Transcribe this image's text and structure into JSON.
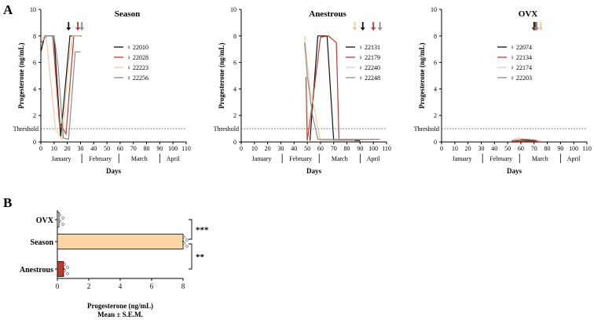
{
  "panel_labels": {
    "a": "A",
    "b": "B"
  },
  "threshold_label": "Threshold",
  "colors": {
    "black": "#111111",
    "red": "#c0392b",
    "peach": "#f3c89a",
    "gray": "#8c8c8c",
    "bar_fill": "#fcd5a5",
    "bar_red": "#c0392b"
  },
  "chart_data": [
    {
      "type": "line",
      "title": "Season",
      "xlabel": "Days",
      "ylabel": "Progesterone (ng/mL)",
      "xlim": [
        0,
        110
      ],
      "ylim": [
        0,
        10
      ],
      "x_ticks": [
        0,
        10,
        20,
        30,
        40,
        50,
        60,
        70,
        80,
        90,
        100,
        110
      ],
      "y_ticks": [
        0,
        2,
        4,
        6,
        8,
        10
      ],
      "months": [
        "January",
        "February",
        "March",
        "April"
      ],
      "threshold": 1,
      "series": [
        {
          "name": "♀ 22010",
          "color": "black",
          "points": [
            [
              0,
              6.8
            ],
            [
              3,
              8
            ],
            [
              10,
              8
            ],
            [
              15,
              0.4
            ],
            [
              22,
              8
            ],
            [
              29,
              8
            ]
          ]
        },
        {
          "name": "♀ 22028",
          "color": "red",
          "points": [
            [
              0,
              7.4
            ],
            [
              4,
              8
            ],
            [
              9,
              8
            ],
            [
              14,
              1.5
            ],
            [
              19,
              0.6
            ],
            [
              25,
              8
            ],
            [
              31,
              8
            ]
          ]
        },
        {
          "name": "♀ 22223",
          "color": "peach",
          "points": [
            [
              0,
              7.8
            ],
            [
              4,
              8
            ],
            [
              8,
              4
            ],
            [
              11,
              1
            ],
            [
              16,
              0.2
            ],
            [
              21,
              6
            ],
            [
              24,
              8
            ],
            [
              30,
              8
            ]
          ]
        },
        {
          "name": "♀ 22256",
          "color": "gray",
          "points": [
            [
              0,
              7.4
            ],
            [
              4,
              8
            ],
            [
              10,
              8
            ],
            [
              13,
              5.8
            ],
            [
              17,
              0.3
            ],
            [
              21,
              0.2
            ],
            [
              26,
              6.8
            ],
            [
              30,
              6.8
            ]
          ]
        }
      ],
      "arrows": [
        {
          "x": 21,
          "color": "black"
        },
        {
          "x": 28,
          "color": "red"
        },
        {
          "x": 31,
          "color": "gray"
        }
      ]
    },
    {
      "type": "line",
      "title": "Anestrous",
      "xlabel": "Days",
      "ylabel": "Progesterone (ng/mL)",
      "xlim": [
        0,
        110
      ],
      "ylim": [
        0,
        10
      ],
      "x_ticks": [
        0,
        10,
        20,
        30,
        40,
        50,
        60,
        70,
        80,
        90,
        100,
        110
      ],
      "y_ticks": [
        0,
        2,
        4,
        6,
        8,
        10
      ],
      "months": [
        "January",
        "February",
        "March",
        "April"
      ],
      "threshold": 1,
      "series": [
        {
          "name": "♀ 22131",
          "color": "black",
          "points": [
            [
              52,
              0.1
            ],
            [
              58,
              8
            ],
            [
              65,
              8
            ],
            [
              70,
              0.1
            ],
            [
              90,
              0.1
            ]
          ]
        },
        {
          "name": "♀ 22179",
          "color": "red",
          "points": [
            [
              49,
              4.9
            ],
            [
              50,
              0.1
            ],
            [
              54,
              3
            ],
            [
              60,
              7.9
            ],
            [
              66,
              8
            ],
            [
              72,
              7.5
            ],
            [
              74,
              0.2
            ],
            [
              100,
              0.2
            ]
          ]
        },
        {
          "name": "♀ 22240",
          "color": "peach",
          "points": [
            [
              48,
              8
            ],
            [
              52,
              4
            ],
            [
              56,
              2.2
            ],
            [
              58,
              1
            ],
            [
              60,
              0.1
            ],
            [
              86,
              0.1
            ]
          ]
        },
        {
          "name": "♀ 22248",
          "color": "gray",
          "points": [
            [
              48,
              7.5
            ],
            [
              50,
              5
            ],
            [
              54,
              2
            ],
            [
              58,
              0.2
            ],
            [
              105,
              0.2
            ]
          ]
        }
      ],
      "arrows": [
        {
          "x": 86,
          "color": "peach"
        },
        {
          "x": 92,
          "color": "black"
        },
        {
          "x": 100,
          "color": "red"
        },
        {
          "x": 105,
          "color": "gray"
        }
      ]
    },
    {
      "type": "line",
      "title": "OVX",
      "xlabel": "Days",
      "ylabel": "Progesterone (ng/mL)",
      "xlim": [
        0,
        110
      ],
      "ylim": [
        0,
        10
      ],
      "x_ticks": [
        0,
        10,
        20,
        30,
        40,
        50,
        60,
        70,
        80,
        90,
        100,
        110
      ],
      "y_ticks": [
        0,
        2,
        4,
        6,
        8,
        10
      ],
      "months": [
        "January",
        "February",
        "March",
        "April"
      ],
      "threshold": 1,
      "series": [
        {
          "name": "♀ 22074",
          "color": "black",
          "points": [
            [
              53,
              0.1
            ],
            [
              60,
              0.15
            ],
            [
              70,
              0.1
            ],
            [
              72,
              0.05
            ]
          ]
        },
        {
          "name": "♀ 22134",
          "color": "red",
          "points": [
            [
              53,
              0.05
            ],
            [
              70,
              0.05
            ],
            [
              73,
              0.05
            ]
          ]
        },
        {
          "name": "♀ 22174",
          "color": "peach",
          "points": [
            [
              53,
              0.1
            ],
            [
              58,
              0.3
            ],
            [
              65,
              0.2
            ],
            [
              75,
              0.1
            ]
          ]
        },
        {
          "name": "♀ 22203",
          "color": "gray",
          "points": [
            [
              53,
              0.1
            ],
            [
              62,
              0.2
            ],
            [
              72,
              0.15
            ]
          ]
        }
      ],
      "arrows": [
        {
          "x": 70,
          "color": "black"
        },
        {
          "x": 71,
          "color": "red"
        },
        {
          "x": 72,
          "color": "gray"
        },
        {
          "x": 75,
          "color": "peach"
        }
      ]
    },
    {
      "type": "bar",
      "orientation": "horizontal",
      "categories": [
        "OVX",
        "Season",
        "Anestrous"
      ],
      "values": [
        0.1,
        8.0,
        0.4
      ],
      "errors": [
        0.02,
        0.05,
        0.08
      ],
      "bar_colors": [
        "#ffffff",
        "bar_fill",
        "bar_red"
      ],
      "xlabel": "Progesterone (ng/mL)",
      "xlabel2": "Mean ± S.E.M.",
      "xlim": [
        0,
        8
      ],
      "x_ticks": [
        0,
        2,
        4,
        6,
        8
      ],
      "significance": [
        {
          "between": [
            "OVX",
            "Season"
          ],
          "label": "***"
        },
        {
          "between": [
            "Season",
            "Anestrous"
          ],
          "label": "**"
        }
      ]
    }
  ]
}
